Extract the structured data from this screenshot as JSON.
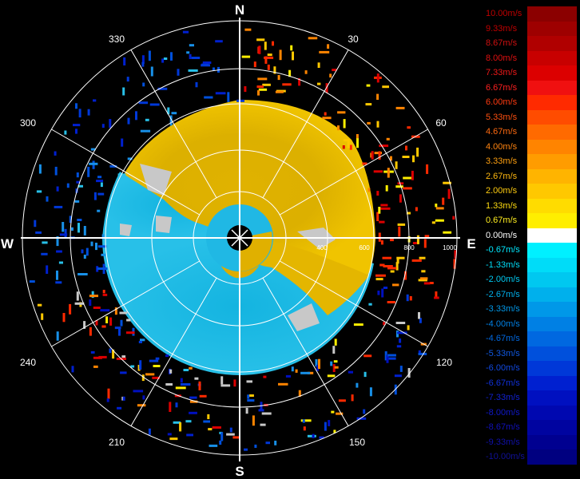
{
  "compass": {
    "north": "N",
    "south": "S",
    "east": "E",
    "west": "W"
  },
  "bearings": [
    "30",
    "60",
    "120",
    "150",
    "210",
    "240",
    "300",
    "330"
  ],
  "range_labels": [
    "400",
    "600",
    "800",
    "1000"
  ],
  "legend": [
    {
      "label": "10.00m/s",
      "color": "#8b0000",
      "text_color": "#c00000"
    },
    {
      "label": "9.33m/s",
      "color": "#9e0000",
      "text_color": "#c00000"
    },
    {
      "label": "8.67m/s",
      "color": "#b00000",
      "text_color": "#d01010"
    },
    {
      "label": "8.00m/s",
      "color": "#c80000",
      "text_color": "#e01010"
    },
    {
      "label": "7.33m/s",
      "color": "#dc0000",
      "text_color": "#f01818"
    },
    {
      "label": "6.67m/s",
      "color": "#f01010",
      "text_color": "#ff2020"
    },
    {
      "label": "6.00m/s",
      "color": "#ff2a00",
      "text_color": "#ff3a10"
    },
    {
      "label": "5.33m/s",
      "color": "#ff4c00",
      "text_color": "#ff5010"
    },
    {
      "label": "4.67m/s",
      "color": "#ff6a00",
      "text_color": "#ff6a10"
    },
    {
      "label": "4.00m/s",
      "color": "#ff8400",
      "text_color": "#ff8410"
    },
    {
      "label": "3.33m/s",
      "color": "#ff9c00",
      "text_color": "#ffa010"
    },
    {
      "label": "2.67m/s",
      "color": "#ffb400",
      "text_color": "#ffb810"
    },
    {
      "label": "2.00m/s",
      "color": "#ffc800",
      "text_color": "#ffcc10"
    },
    {
      "label": "1.33m/s",
      "color": "#ffdc00",
      "text_color": "#ffdc10"
    },
    {
      "label": "0.67m/s",
      "color": "#ffee00",
      "text_color": "#ffee20"
    },
    {
      "label": "0.00m/s",
      "color": "#ffffff",
      "text_color": "#ffffff"
    },
    {
      "label": "-0.67m/s",
      "color": "#00f0ff",
      "text_color": "#00e8ff"
    },
    {
      "label": "-1.33m/s",
      "color": "#00dcf8",
      "text_color": "#00dcf8"
    },
    {
      "label": "-2.00m/s",
      "color": "#00c8f0",
      "text_color": "#00c8f0"
    },
    {
      "label": "-2.67m/s",
      "color": "#00b0ec",
      "text_color": "#00b0ec"
    },
    {
      "label": "-3.33m/s",
      "color": "#0098e8",
      "text_color": "#0098e8"
    },
    {
      "label": "-4.00m/s",
      "color": "#0080e4",
      "text_color": "#0080e4"
    },
    {
      "label": "-4.67m/s",
      "color": "#0068e0",
      "text_color": "#0068e0"
    },
    {
      "label": "-5.33m/s",
      "color": "#0050dc",
      "text_color": "#1058e0"
    },
    {
      "label": "-6.00m/s",
      "color": "#0038d8",
      "text_color": "#1048e0"
    },
    {
      "label": "-6.67m/s",
      "color": "#0020d0",
      "text_color": "#1030d8"
    },
    {
      "label": "-7.33m/s",
      "color": "#0010c0",
      "text_color": "#1020d0"
    },
    {
      "label": "-8.00m/s",
      "color": "#0008b0",
      "text_color": "#1018c8"
    },
    {
      "label": "-8.67m/s",
      "color": "#0004a0",
      "text_color": "#1010b8"
    },
    {
      "label": "-9.33m/s",
      "color": "#000090",
      "text_color": "#1010a8"
    },
    {
      "label": "-10.00m/s",
      "color": "#000080",
      "text_color": "#101098"
    }
  ]
}
